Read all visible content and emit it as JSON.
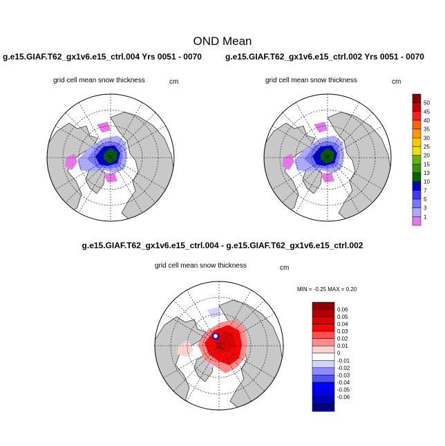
{
  "title": "OND Mean",
  "panels": [
    {
      "case": "g.e15.GIAF.T62_gx1v6.e15_ctrl.004  Yrs 0051 - 0070",
      "var": "grid cell mean snow thickness",
      "unit": "cm"
    },
    {
      "case": "g.e15.GIAF.T62_gx1v6.e15_ctrl.002  Yrs 0051 - 0070",
      "var": "grid cell mean snow thickness",
      "unit": "cm"
    }
  ],
  "difference": {
    "title": "g.e15.GIAF.T62_gx1v6.e15_ctrl.004 - g.e15.GIAF.T62_gx1v6.e15_ctrl.002",
    "var": "grid cell mean snow thickness",
    "unit": "cm",
    "minmax": "MIN =  -0.25 MAX =   0.20"
  },
  "colorbar_top": {
    "labels": [
      "50",
      "45",
      "40",
      "35",
      "30",
      "25",
      "20",
      "15",
      "13",
      "10",
      "7",
      "5",
      "3",
      "1"
    ],
    "colors": [
      "#8b0000",
      "#c80000",
      "#ff1e1e",
      "#ff6400",
      "#ff9600",
      "#ffc800",
      "#e6e600",
      "#64b400",
      "#329600",
      "#006400",
      "#0000c8",
      "#3c3cf0",
      "#7878ff",
      "#aaaaff",
      "#e678e6"
    ]
  },
  "colorbar_diff": {
    "labels": [
      "0.06",
      "0.05",
      "0.04",
      "0.03",
      "0.02",
      "0.01",
      "0",
      "-0.01",
      "-0.02",
      "-0.03",
      "-0.04",
      "-0.05",
      "-0.06"
    ],
    "colors": [
      "#8b0000",
      "#b40000",
      "#dc0000",
      "#ff0000",
      "#ff5050",
      "#ff8c8c",
      "#ffd2d2",
      "#ffffff",
      "#d2d2ff",
      "#8c8cff",
      "#5050ff",
      "#0000ff",
      "#0000dc",
      "#0000b4",
      "#00008b"
    ]
  }
}
